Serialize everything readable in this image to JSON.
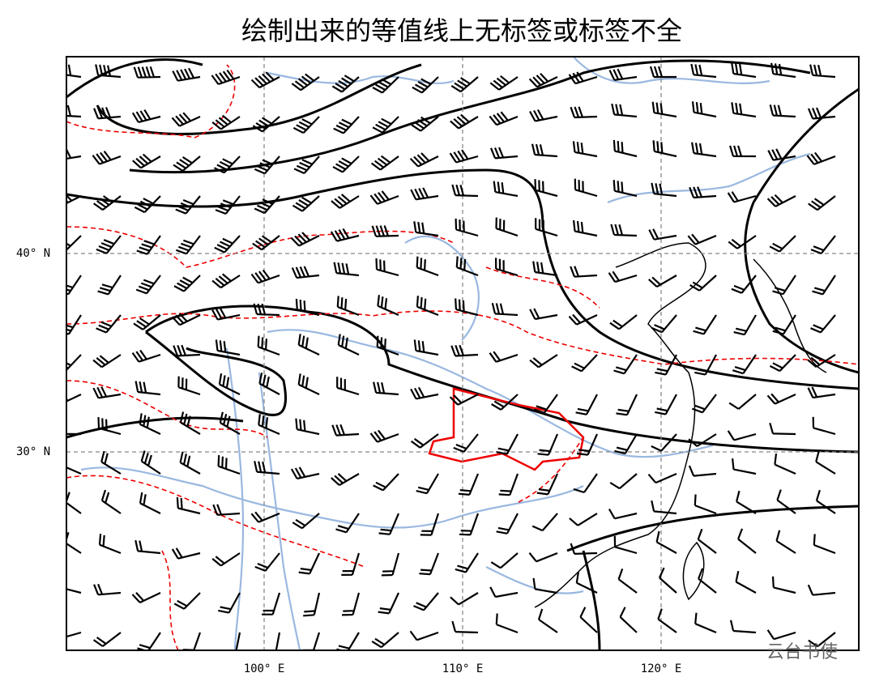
{
  "title": "绘制出来的等值线上无标签或标签不全",
  "lat_labels": [
    "40° N",
    "30° N"
  ],
  "lon_labels": [
    "100° E",
    "110° E",
    "120° E"
  ],
  "watermark": "云台书使"
}
